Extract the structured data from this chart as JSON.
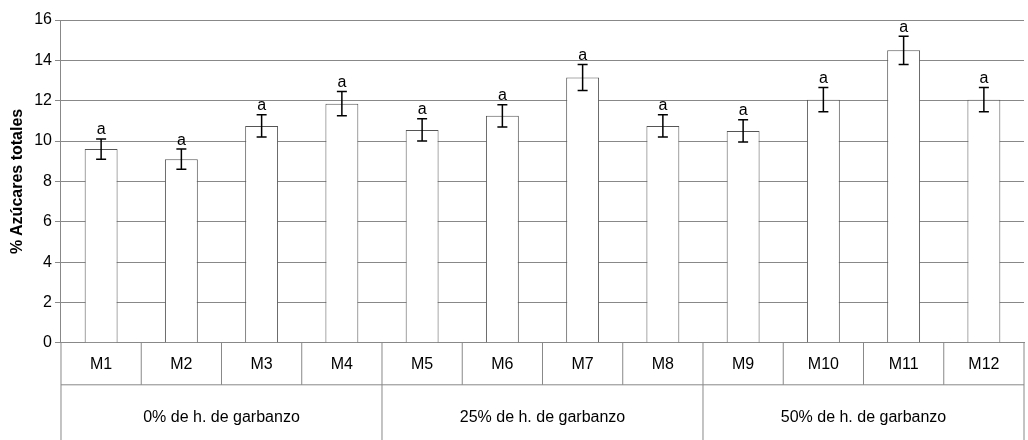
{
  "chart_data": {
    "type": "bar",
    "ylabel": "% Azúcares totales",
    "categories": [
      "M1",
      "M2",
      "M3",
      "M4",
      "M5",
      "M6",
      "M7",
      "M8",
      "M9",
      "M10",
      "M11",
      "M12"
    ],
    "values": [
      9.6,
      9.1,
      10.75,
      11.85,
      10.55,
      11.25,
      13.15,
      10.75,
      10.5,
      12.05,
      14.5,
      12.05
    ],
    "errors": [
      0.5,
      0.5,
      0.55,
      0.6,
      0.55,
      0.55,
      0.65,
      0.55,
      0.55,
      0.6,
      0.7,
      0.6
    ],
    "value_labels": [
      "a",
      "a",
      "a",
      "a",
      "a",
      "a",
      "a",
      "a",
      "a",
      "a",
      "a",
      "a"
    ],
    "color": "#ffffff",
    "annotations": [
      "0% de h. de garbanzo",
      "25% de h. de garbanzo",
      "50% de h. de garbanzo"
    ],
    "ylim": [
      0,
      16
    ],
    "yticks": [
      0,
      2,
      4,
      6,
      8,
      10,
      12,
      14,
      16
    ],
    "grid": "y",
    "legend": false
  }
}
